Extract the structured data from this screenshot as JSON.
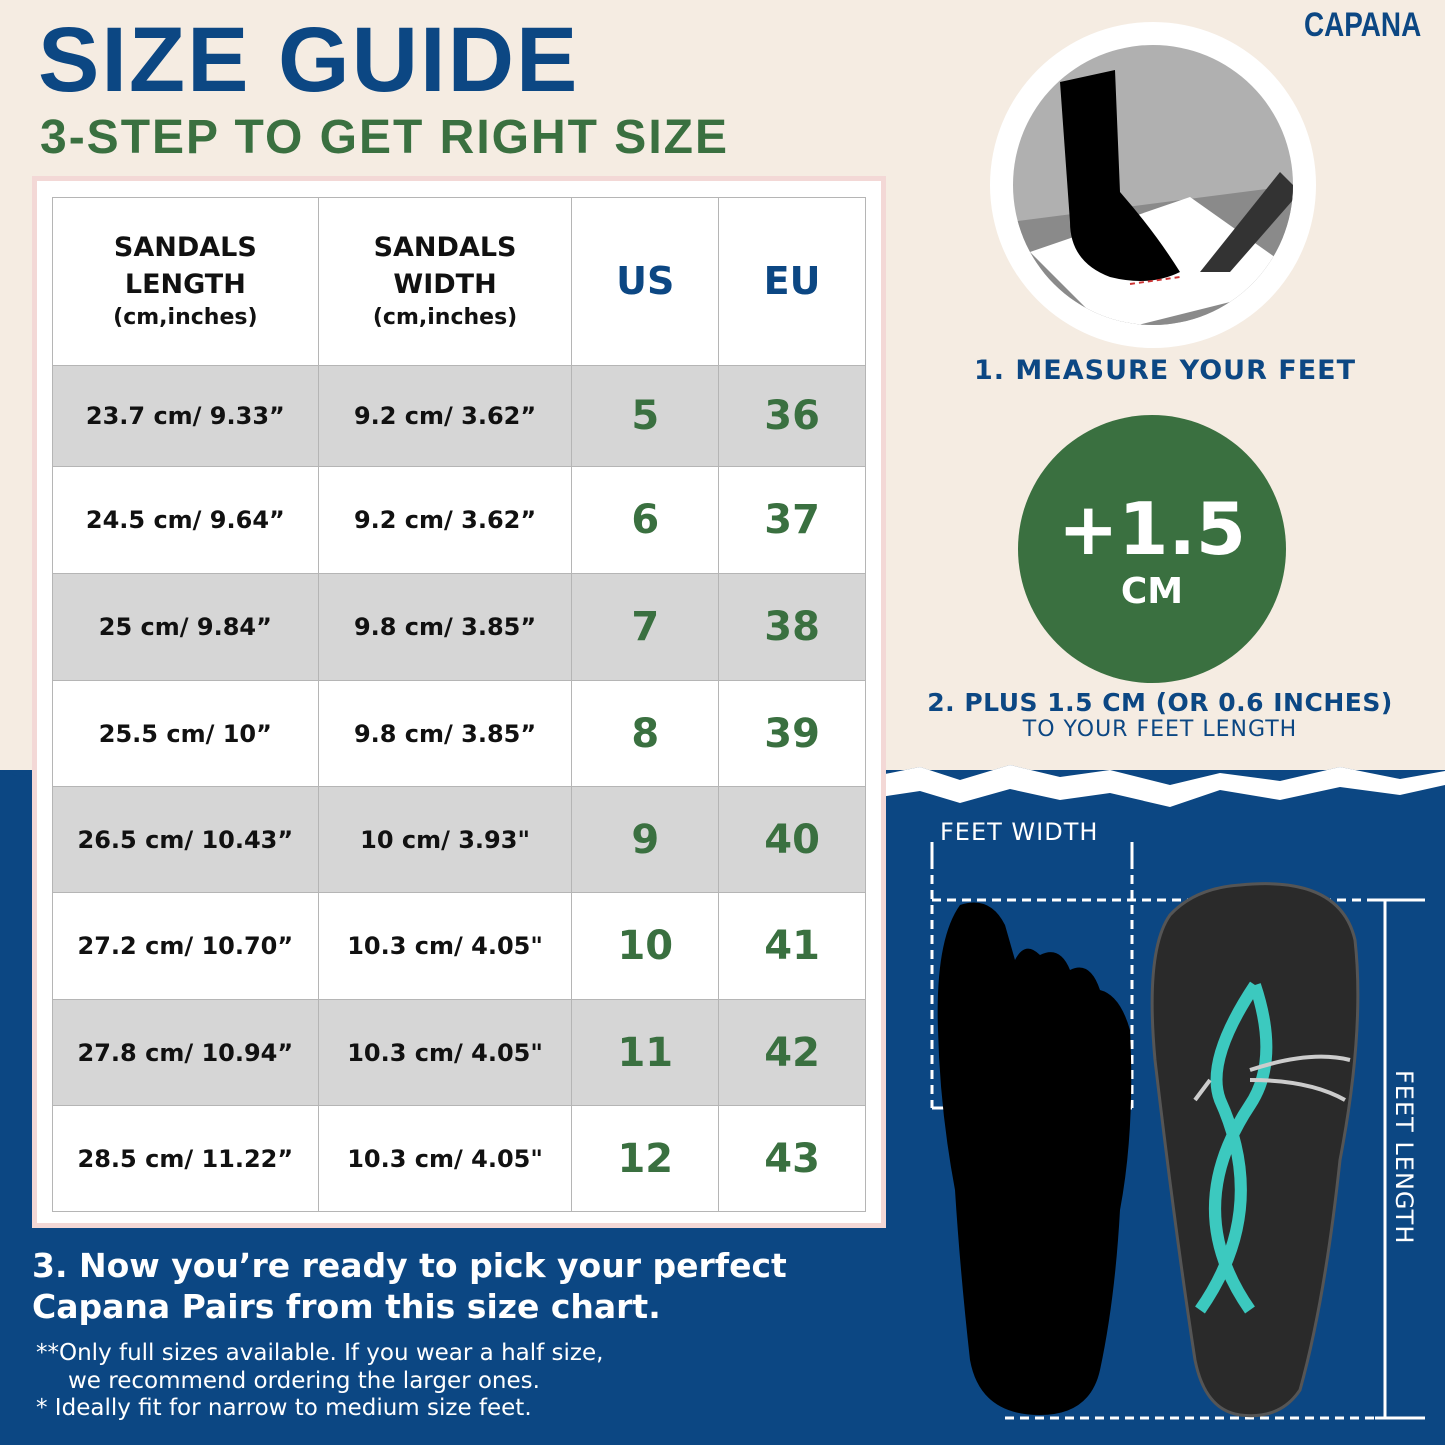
{
  "header": {
    "title": "SIZE GUIDE",
    "subtitle": "3-STEP TO GET RIGHT SIZE",
    "brand": "CAPANA"
  },
  "table": {
    "headers": [
      {
        "title": "SANDALS LENGTH",
        "sub": "(cm,inches)"
      },
      {
        "title": "SANDALS WIDTH",
        "sub": "(cm,inches)"
      },
      {
        "title": "US"
      },
      {
        "title": "EU"
      }
    ],
    "rows": [
      [
        "23.7 cm/ 9.33”",
        "9.2 cm/ 3.62”",
        "5",
        "36"
      ],
      [
        "24.5 cm/ 9.64”",
        "9.2 cm/ 3.62”",
        "6",
        "37"
      ],
      [
        "25 cm/ 9.84”",
        "9.8 cm/ 3.85”",
        "7",
        "38"
      ],
      [
        "25.5 cm/ 10”",
        "9.8 cm/ 3.85”",
        "8",
        "39"
      ],
      [
        "26.5 cm/ 10.43”",
        "10 cm/ 3.93\"",
        "9",
        "40"
      ],
      [
        "27.2 cm/ 10.70”",
        "10.3 cm/ 4.05\"",
        "10",
        "41"
      ],
      [
        "27.8 cm/ 10.94”",
        "10.3 cm/ 4.05\"",
        "11",
        "42"
      ],
      [
        "28.5 cm/ 11.22”",
        "10.3 cm/ 4.05\"",
        "12",
        "43"
      ]
    ]
  },
  "steps": {
    "step1": "1. MEASURE YOUR FEET",
    "badge_value": "+1.5",
    "badge_unit": "CM",
    "step2_line1": "2. PLUS 1.5 CM (OR 0.6 INCHES)",
    "step2_line2": "TO YOUR FEET LENGTH",
    "step3": "3. Now you’re ready to pick your perfect Capana Pairs from this size chart.",
    "note1a": "**Only full sizes available. If you wear a half size,",
    "note1b": "we recommend ordering the larger ones.",
    "note2": "*  Ideally fit for narrow to medium size feet."
  },
  "diagram": {
    "feet_width": "FEET WIDTH",
    "feet_length": "FEET LENGTH"
  },
  "colors": {
    "blue": "#0c4783",
    "green": "#3a7040",
    "beige": "#f5ece2",
    "strap": "#3cc9bf"
  }
}
